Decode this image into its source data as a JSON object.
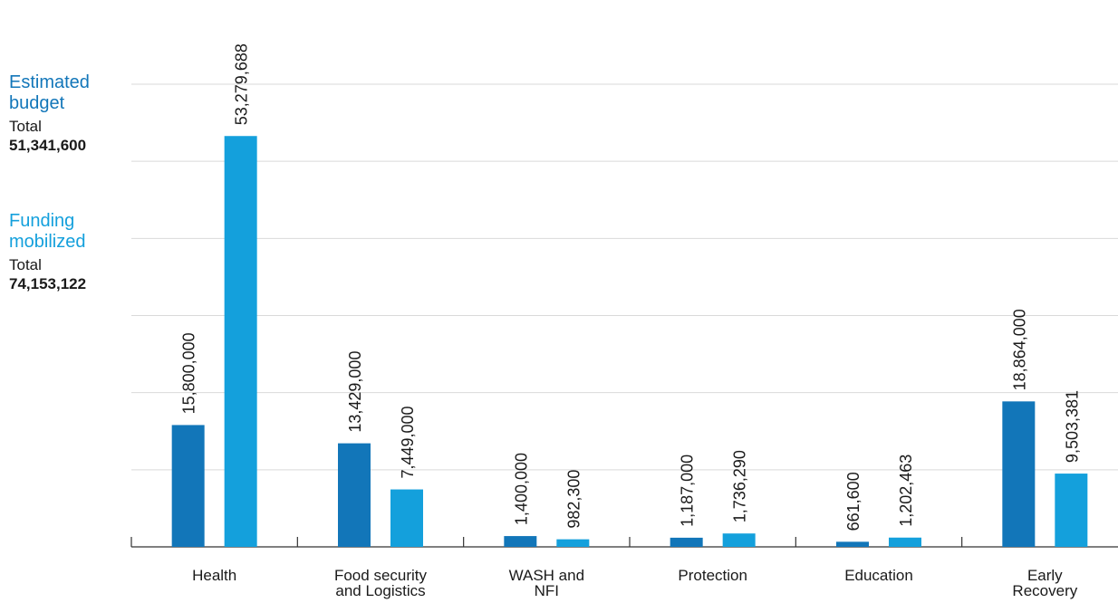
{
  "legend": {
    "estimated": {
      "name_line1": "Estimated",
      "name_line2": "budget",
      "total_label": "Total",
      "total_value": "51,341,600",
      "color": "#1276b9"
    },
    "funding": {
      "name_line1": "Funding",
      "name_line2": "mobilized",
      "total_label": "Total",
      "total_value": "74,153,122",
      "color": "#14a0dc"
    }
  },
  "chart_data": {
    "type": "bar",
    "categories": [
      [
        "Health"
      ],
      [
        "Food security",
        "and Logistics"
      ],
      [
        "WASH and",
        "NFI"
      ],
      [
        "Protection"
      ],
      [
        "Education"
      ],
      [
        "Early",
        "Recovery"
      ]
    ],
    "series": [
      {
        "name": "Estimated budget",
        "color": "#1276b9",
        "values": [
          15800000,
          13429000,
          1400000,
          1187000,
          661600,
          18864000
        ],
        "labels": [
          "15,800,000",
          "13,429,000",
          "1,400,000",
          "1,187,000",
          "661,600",
          "18,864,000"
        ]
      },
      {
        "name": "Funding mobilized",
        "color": "#14a0dc",
        "values": [
          53279688,
          7449000,
          982300,
          1736290,
          1202463,
          9503381
        ],
        "labels": [
          "53,279,688",
          "7,449,000",
          "982,300",
          "1,736,290",
          "1,202,463",
          "9,503,381"
        ]
      }
    ],
    "ylim": [
      0,
      60000000
    ],
    "grid": true,
    "gridlines": [
      10000000,
      20000000,
      30000000,
      40000000,
      50000000,
      60000000
    ],
    "legend_placement": "left"
  }
}
